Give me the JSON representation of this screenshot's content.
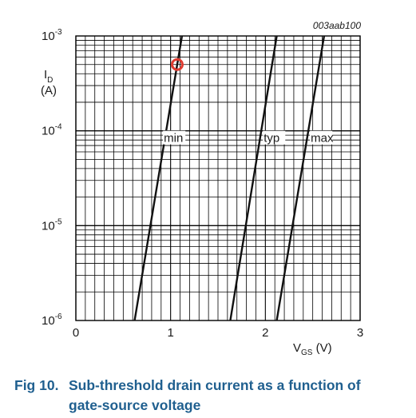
{
  "chart_data": {
    "type": "line",
    "figure_id": "003aab100",
    "xlabel_main": "V",
    "xlabel_sub": "GS",
    "xlabel_unit": "(V)",
    "ylabel_main": "I",
    "ylabel_sub": "D",
    "ylabel_unit": "(A)",
    "xlim": [
      0,
      3
    ],
    "ylim": [
      1e-06,
      0.001
    ],
    "yscale": "log",
    "grid": true,
    "x_ticks": [
      "0",
      "1",
      "2",
      "3"
    ],
    "y_ticks": [
      {
        "base": "10",
        "exp": "-6",
        "value": 1e-06
      },
      {
        "base": "10",
        "exp": "-5",
        "value": 1e-05
      },
      {
        "base": "10",
        "exp": "-4",
        "value": 0.0001
      },
      {
        "base": "10",
        "exp": "-3",
        "value": 0.001
      }
    ],
    "series": [
      {
        "name": "min",
        "x": [
          0.62,
          1.12
        ],
        "y": [
          1e-06,
          0.001
        ]
      },
      {
        "name": "typ",
        "x": [
          1.63,
          2.12
        ],
        "y": [
          1e-06,
          0.001
        ]
      },
      {
        "name": "max",
        "x": [
          2.12,
          2.62
        ],
        "y": [
          1e-06,
          0.001
        ]
      }
    ],
    "marker": {
      "x": 1.07,
      "y": 0.0005,
      "color": "#e03c31"
    }
  },
  "caption": {
    "number": "Fig 10.",
    "line1": "Sub-threshold drain current as a function of",
    "line2": "gate-source voltage",
    "color": "#1f5f8f"
  }
}
